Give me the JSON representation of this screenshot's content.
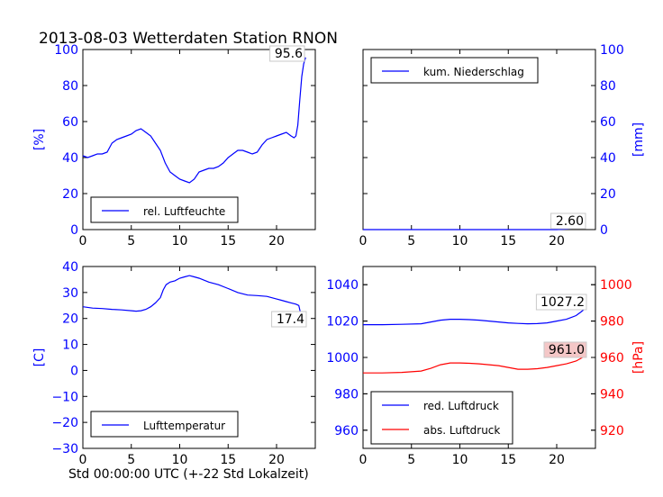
{
  "title": "2013-08-03 Wetterdaten Station RNON",
  "x_caption": "Std 00:00:00 UTC (+-22 Std Lokalzeit)",
  "colors": {
    "blue": "#0000ff",
    "red": "#ff0000",
    "black": "#000000",
    "annotation_bg": "#f4c7c7"
  },
  "chart_data": [
    {
      "type": "line",
      "id": "humidity",
      "ylabel": "[%]",
      "xlim": [
        0,
        24
      ],
      "ylim": [
        0,
        100
      ],
      "x_ticks": [
        "0",
        "5",
        "10",
        "15",
        "20"
      ],
      "y_ticks": [
        "0",
        "20",
        "40",
        "60",
        "80",
        "100"
      ],
      "legend": "lower-left",
      "annotation": "95.6",
      "series": [
        {
          "name": "rel. Luftfeuchte",
          "color": "#0000ff",
          "x": [
            0,
            0.5,
            1,
            1.5,
            2,
            2.5,
            3,
            3.5,
            4,
            4.5,
            5,
            5.5,
            6,
            6.5,
            7,
            7.5,
            8,
            8.5,
            9,
            9.5,
            10,
            10.5,
            11,
            11.5,
            12,
            12.5,
            13,
            13.5,
            14,
            14.5,
            15,
            15.5,
            16,
            16.5,
            17,
            17.5,
            18,
            18.5,
            19,
            19.5,
            20,
            20.5,
            21,
            21.5,
            21.8,
            22,
            22.2,
            22.4,
            22.6,
            22.8,
            23
          ],
          "y": [
            41,
            40,
            41,
            42,
            42,
            43,
            48,
            50,
            51,
            52,
            53,
            55,
            56,
            54,
            52,
            48,
            44,
            37,
            32,
            30,
            28,
            27,
            26,
            28,
            32,
            33,
            34,
            34,
            35,
            37,
            40,
            42,
            44,
            44,
            43,
            42,
            43,
            47,
            50,
            51,
            52,
            53,
            54,
            52,
            51,
            52,
            58,
            72,
            85,
            92,
            95.6
          ]
        }
      ]
    },
    {
      "type": "line",
      "id": "precipitation",
      "ylabel": "[mm]",
      "xlim": [
        0,
        24
      ],
      "ylim": [
        0,
        100
      ],
      "x_ticks": [
        "0",
        "5",
        "10",
        "15",
        "20"
      ],
      "y_ticks": [
        "0",
        "20",
        "40",
        "60",
        "80",
        "100"
      ],
      "legend": "top-left",
      "annotation": "2.60",
      "series": [
        {
          "name": "kum. Niederschlag",
          "color": "#0000ff",
          "x": [
            0,
            5,
            10,
            15,
            20,
            21,
            22,
            22.5,
            23
          ],
          "y": [
            0,
            0,
            0,
            0,
            0,
            0.3,
            0.8,
            1.6,
            2.6
          ]
        }
      ]
    },
    {
      "type": "line",
      "id": "temperature",
      "ylabel": "[C]",
      "xlim": [
        0,
        24
      ],
      "ylim": [
        -30,
        40
      ],
      "x_ticks": [
        "0",
        "5",
        "10",
        "15",
        "20"
      ],
      "y_ticks": [
        "−30",
        "−20",
        "−10",
        "0",
        "10",
        "20",
        "30",
        "40"
      ],
      "legend": "lower-left",
      "annotation": "17.4",
      "series": [
        {
          "name": "Lufttemperatur",
          "color": "#0000ff",
          "x": [
            0,
            1,
            2,
            3,
            4,
            5,
            5.5,
            6,
            6.5,
            7,
            7.5,
            8,
            8.3,
            8.6,
            9,
            9.5,
            10,
            10.5,
            11,
            11.5,
            12,
            13,
            14,
            15,
            16,
            17,
            18,
            19,
            20,
            20.5,
            21,
            21.5,
            22,
            22.3,
            22.6,
            23
          ],
          "y": [
            24.5,
            24,
            23.8,
            23.5,
            23.3,
            23,
            22.8,
            23,
            23.5,
            24.5,
            26,
            28,
            31,
            33,
            34,
            34.5,
            35.5,
            36,
            36.5,
            36,
            35.5,
            34,
            33,
            31.5,
            30,
            29,
            28.8,
            28.5,
            27.5,
            27,
            26.5,
            26,
            25.5,
            25,
            20,
            17.4
          ]
        }
      ]
    },
    {
      "type": "line",
      "id": "pressure",
      "ylabel": "[hPa]",
      "xlim": [
        0,
        24
      ],
      "ylim": [
        950,
        1050
      ],
      "ylim_right": [
        910,
        1010
      ],
      "x_ticks": [
        "0",
        "5",
        "10",
        "15",
        "20"
      ],
      "y_ticks": [
        "960",
        "980",
        "1000",
        "1020",
        "1040"
      ],
      "y_ticks_right": [
        "920",
        "940",
        "960",
        "980",
        "1000"
      ],
      "legend": "lower-left",
      "annotations": [
        "1027.2",
        "961.0"
      ],
      "series": [
        {
          "name": "red. Luftdruck",
          "color": "#0000ff",
          "axis": "left",
          "x": [
            0,
            2,
            4,
            6,
            7,
            8,
            9,
            10,
            11,
            12,
            13,
            14,
            15,
            16,
            17,
            18,
            19,
            20,
            21,
            22,
            22.5,
            23
          ],
          "y": [
            1018,
            1018,
            1018.2,
            1018.5,
            1019.5,
            1020.5,
            1021,
            1021,
            1020.8,
            1020.5,
            1020,
            1019.5,
            1019,
            1018.7,
            1018.5,
            1018.6,
            1019,
            1020,
            1021,
            1023,
            1025,
            1027.2
          ]
        },
        {
          "name": "abs. Luftdruck",
          "color": "#ff0000",
          "axis": "right",
          "x": [
            0,
            2,
            4,
            6,
            7,
            8,
            9,
            10,
            11,
            12,
            13,
            14,
            15,
            16,
            17,
            18,
            19,
            20,
            21,
            22,
            22.5,
            23
          ],
          "y": [
            951.5,
            951.5,
            951.8,
            952.5,
            954,
            956,
            957,
            957,
            956.8,
            956.5,
            956,
            955.5,
            954.5,
            953.5,
            953.5,
            953.8,
            954.5,
            955.5,
            956.5,
            958,
            959.5,
            961.0
          ]
        }
      ]
    }
  ]
}
